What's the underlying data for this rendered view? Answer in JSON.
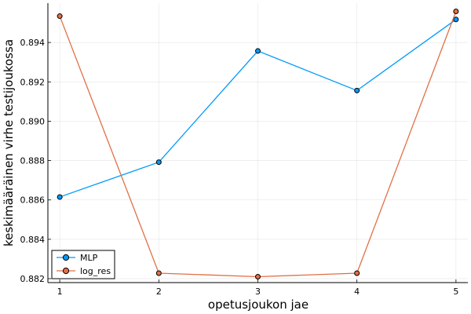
{
  "chart_data": {
    "type": "line",
    "xlabel": "opetusjoukon jae",
    "ylabel": "keskimääräinen virhe testijoukossa",
    "x": [
      1,
      2,
      3,
      4,
      5
    ],
    "xticks": [
      "1",
      "2",
      "3",
      "4",
      "5"
    ],
    "yticks": [
      "0.882",
      "0.884",
      "0.886",
      "0.888",
      "0.890",
      "0.892",
      "0.894"
    ],
    "ylim": [
      0.8818,
      0.896
    ],
    "xlim": [
      0.88,
      5.12
    ],
    "grid": true,
    "legend_position": "bottom-left",
    "series": [
      {
        "name": "MLP",
        "color": "#009AFA",
        "values": [
          0.88615,
          0.88792,
          0.89357,
          0.89156,
          0.89517
        ]
      },
      {
        "name": "log_res",
        "color": "#E26F46",
        "values": [
          0.89534,
          0.88228,
          0.8821,
          0.88228,
          0.89558
        ]
      }
    ]
  }
}
